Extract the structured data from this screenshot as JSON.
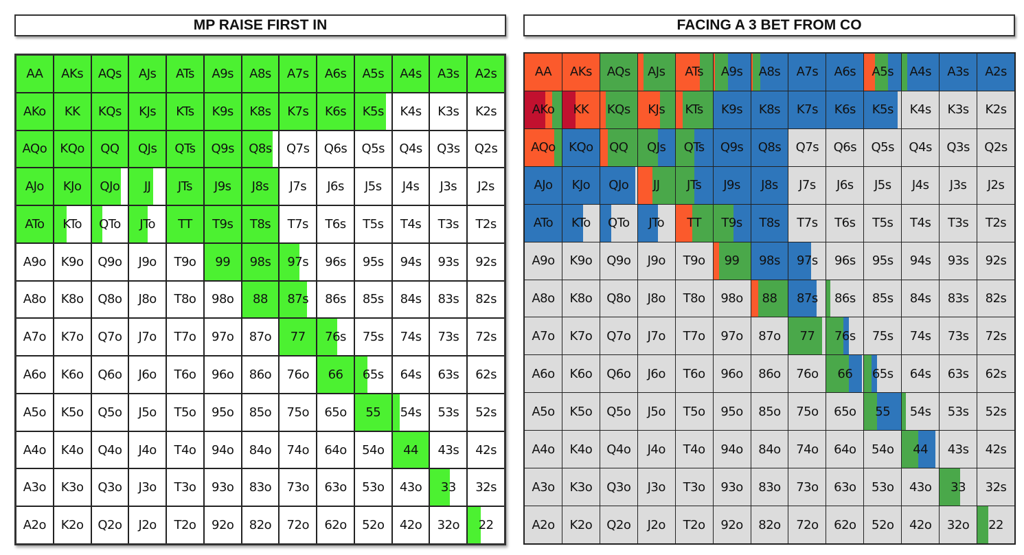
{
  "colors": {
    "raise_green": "#4cf131",
    "fold_white": "#ffffff",
    "fold_gray": "#dcdcdc",
    "call_green": "#4aa84a",
    "blue": "#2e76bb",
    "orange": "#fb5a2c",
    "dark_red": "#c2112f"
  },
  "left_chart": {
    "title": "MP RAISE FIRST IN",
    "background": "#ffffff",
    "actions": [
      {
        "key": "r",
        "color": "#4cf131"
      }
    ]
  },
  "right_chart": {
    "title": "FACING A 3 BET FROM CO",
    "background": "#dcdcdc",
    "actions": [
      {
        "key": "d",
        "color": "#c2112f"
      },
      {
        "key": "o",
        "color": "#fb5a2c"
      },
      {
        "key": "g",
        "color": "#4aa84a"
      },
      {
        "key": "b",
        "color": "#2e76bb"
      }
    ]
  },
  "chart_data": {
    "type": "heatmap",
    "ranks": [
      "A",
      "K",
      "Q",
      "J",
      "T",
      "9",
      "8",
      "7",
      "6",
      "5",
      "4",
      "3",
      "2"
    ],
    "hands": [
      [
        "AA",
        "AKs",
        "AQs",
        "AJs",
        "ATs",
        "A9s",
        "A8s",
        "A7s",
        "A6s",
        "A5s",
        "A4s",
        "A3s",
        "A2s"
      ],
      [
        "AKo",
        "KK",
        "KQs",
        "KJs",
        "KTs",
        "K9s",
        "K8s",
        "K7s",
        "K6s",
        "K5s",
        "K4s",
        "K3s",
        "K2s"
      ],
      [
        "AQo",
        "KQo",
        "QQ",
        "QJs",
        "QTs",
        "Q9s",
        "Q8s",
        "Q7s",
        "Q6s",
        "Q5s",
        "Q4s",
        "Q3s",
        "Q2s"
      ],
      [
        "AJo",
        "KJo",
        "QJo",
        "JJ",
        "JTs",
        "J9s",
        "J8s",
        "J7s",
        "J6s",
        "J5s",
        "J4s",
        "J3s",
        "J2s"
      ],
      [
        "ATo",
        "KTo",
        "QTo",
        "JTo",
        "TT",
        "T9s",
        "T8s",
        "T7s",
        "T6s",
        "T5s",
        "T4s",
        "T3s",
        "T2s"
      ],
      [
        "A9o",
        "K9o",
        "Q9o",
        "J9o",
        "T9o",
        "99",
        "98s",
        "97s",
        "96s",
        "95s",
        "94s",
        "93s",
        "92s"
      ],
      [
        "A8o",
        "K8o",
        "Q8o",
        "J8o",
        "T8o",
        "98o",
        "88",
        "87s",
        "86s",
        "85s",
        "84s",
        "83s",
        "82s"
      ],
      [
        "A7o",
        "K7o",
        "Q7o",
        "J7o",
        "T7o",
        "97o",
        "87o",
        "77",
        "76s",
        "75s",
        "74s",
        "73s",
        "72s"
      ],
      [
        "A6o",
        "K6o",
        "Q6o",
        "J6o",
        "T6o",
        "96o",
        "86o",
        "76o",
        "66",
        "65s",
        "64s",
        "63s",
        "62s"
      ],
      [
        "A5o",
        "K5o",
        "Q5o",
        "J5o",
        "T5o",
        "95o",
        "85o",
        "75o",
        "65o",
        "55",
        "54s",
        "53s",
        "52s"
      ],
      [
        "A4o",
        "K4o",
        "Q4o",
        "J4o",
        "T4o",
        "94o",
        "84o",
        "74o",
        "64o",
        "54o",
        "44",
        "43s",
        "42s"
      ],
      [
        "A3o",
        "K3o",
        "Q3o",
        "J3o",
        "T3o",
        "93o",
        "83o",
        "73o",
        "63o",
        "53o",
        "43o",
        "33",
        "32s"
      ],
      [
        "A2o",
        "K2o",
        "Q2o",
        "J2o",
        "T2o",
        "92o",
        "82o",
        "72o",
        "62o",
        "52o",
        "42o",
        "32o",
        "22"
      ]
    ],
    "left_frequencies": [
      [
        {
          "r": 1
        },
        {
          "r": 1
        },
        {
          "r": 1
        },
        {
          "r": 1
        },
        {
          "r": 1
        },
        {
          "r": 1
        },
        {
          "r": 1
        },
        {
          "r": 1
        },
        {
          "r": 1
        },
        {
          "r": 1
        },
        {
          "r": 1
        },
        {
          "r": 1
        },
        {
          "r": 1
        }
      ],
      [
        {
          "r": 1
        },
        {
          "r": 1
        },
        {
          "r": 1
        },
        {
          "r": 1
        },
        {
          "r": 1
        },
        {
          "r": 1
        },
        {
          "r": 1
        },
        {
          "r": 1
        },
        {
          "r": 1
        },
        {
          "r": 0.85
        },
        {},
        {},
        {}
      ],
      [
        {
          "r": 1
        },
        {
          "r": 1
        },
        {
          "r": 1
        },
        {
          "r": 1
        },
        {
          "r": 1
        },
        {
          "r": 1
        },
        {
          "r": 0.85
        },
        {},
        {},
        {},
        {},
        {},
        {}
      ],
      [
        {
          "r": 1
        },
        {
          "r": 1
        },
        {
          "r": 0.8
        },
        {
          "r": 0.65
        },
        {
          "r": 1
        },
        {
          "r": 1
        },
        {
          "r": 1
        },
        {},
        {},
        {},
        {},
        {},
        {}
      ],
      [
        {
          "r": 1
        },
        {
          "r": 0.35
        },
        {
          "r": 0.3
        },
        {
          "r": 0.5
        },
        {
          "r": 1
        },
        {
          "r": 1
        },
        {
          "r": 1
        },
        {},
        {},
        {},
        {},
        {},
        {}
      ],
      [
        {},
        {},
        {},
        {},
        {},
        {
          "r": 1
        },
        {
          "r": 1
        },
        {
          "r": 0.55
        },
        {},
        {},
        {},
        {},
        {}
      ],
      [
        {},
        {},
        {},
        {},
        {},
        {},
        {
          "r": 1
        },
        {
          "r": 0.75
        },
        {},
        {},
        {},
        {},
        {}
      ],
      [
        {},
        {},
        {},
        {},
        {},
        {},
        {},
        {
          "r": 1
        },
        {
          "r": 0.55
        },
        {},
        {},
        {},
        {}
      ],
      [
        {},
        {},
        {},
        {},
        {},
        {},
        {},
        {},
        {
          "r": 1
        },
        {
          "r": 0.35
        },
        {},
        {},
        {}
      ],
      [
        {},
        {},
        {},
        {},
        {},
        {},
        {},
        {},
        {},
        {
          "r": 1
        },
        {
          "r": 0.2
        },
        {},
        {}
      ],
      [
        {},
        {},
        {},
        {},
        {},
        {},
        {},
        {},
        {},
        {},
        {
          "r": 1
        },
        {},
        {}
      ],
      [
        {},
        {},
        {},
        {},
        {},
        {},
        {},
        {},
        {},
        {},
        {},
        {
          "r": 0.55
        },
        {}
      ],
      [
        {},
        {},
        {},
        {},
        {},
        {},
        {},
        {},
        {},
        {},
        {},
        {},
        {
          "r": 0.35
        }
      ]
    ],
    "right_frequencies": [
      [
        {
          "o": 1
        },
        {
          "o": 1
        },
        {
          "g": 1
        },
        {
          "o": 0.15,
          "g": 0.85
        },
        {
          "o": 0.65,
          "g": 0.35
        },
        {
          "o": 0.05,
          "g": 0.35,
          "b": 0.6
        },
        {
          "o": 0.05,
          "g": 0.2,
          "b": 0.75
        },
        {
          "b": 1
        },
        {
          "b": 1
        },
        {
          "o": 0.3,
          "g": 0.35,
          "b": 0.35
        },
        {
          "g": 0.15,
          "b": 0.85
        },
        {
          "b": 1
        },
        {
          "b": 1
        }
      ],
      [
        {
          "d": 0.55,
          "o": 0.2,
          "g": 0.25
        },
        {
          "d": 0.35,
          "o": 0.65
        },
        {
          "o": 0.15,
          "g": 0.85
        },
        {
          "o": 0.6,
          "g": 0.4
        },
        {
          "o": 0.2,
          "g": 0.8
        },
        {
          "b": 1
        },
        {
          "b": 1
        },
        {
          "b": 1
        },
        {
          "b": 1
        },
        {
          "b": 0.9
        },
        {},
        {},
        {}
      ],
      [
        {
          "o": 0.8,
          "g": 0.2
        },
        {
          "b": 1
        },
        {
          "o": 0.2,
          "g": 0.8
        },
        {
          "g": 0.55,
          "b": 0.45
        },
        {
          "g": 0.5,
          "b": 0.5
        },
        {
          "b": 1
        },
        {
          "b": 1
        },
        {},
        {},
        {},
        {},
        {},
        {}
      ],
      [
        {
          "b": 1
        },
        {
          "b": 1
        },
        {
          "b": 0.95
        },
        {
          "o": 0.4,
          "g": 0.6
        },
        {
          "g": 0.5,
          "b": 0.5
        },
        {
          "b": 1
        },
        {
          "b": 1
        },
        {},
        {},
        {},
        {},
        {},
        {}
      ],
      [
        {
          "b": 1
        },
        {
          "b": 0.55
        },
        {
          "b": 0.3
        },
        {
          "b": 0.55
        },
        {
          "o": 0.45,
          "g": 0.55
        },
        {
          "g": 0.55,
          "b": 0.45
        },
        {
          "b": 1
        },
        {},
        {},
        {},
        {},
        {},
        {}
      ],
      [
        {},
        {},
        {},
        {},
        {},
        {
          "o": 0.15,
          "g": 0.85
        },
        {
          "b": 1
        },
        {
          "b": 0.6
        },
        {},
        {},
        {},
        {},
        {}
      ],
      [
        {},
        {},
        {},
        {},
        {},
        {},
        {
          "o": 0.2,
          "g": 0.8
        },
        {
          "b": 0.75
        },
        {
          "g": 0.1
        },
        {},
        {},
        {},
        {}
      ],
      [
        {},
        {},
        {},
        {},
        {},
        {},
        {},
        {
          "g": 0.9
        },
        {
          "g": 0.45,
          "b": 0.15
        },
        {},
        {},
        {},
        {}
      ],
      [
        {},
        {},
        {},
        {},
        {},
        {},
        {},
        {},
        {
          "g": 0.6,
          "b": 0.35
        },
        {
          "g": 0.2,
          "b": 0.15
        },
        {},
        {},
        {}
      ],
      [
        {},
        {},
        {},
        {},
        {},
        {},
        {},
        {},
        {},
        {
          "g": 0.35,
          "b": 0.65
        },
        {
          "g": 0.1
        },
        {},
        {}
      ],
      [
        {},
        {},
        {},
        {},
        {},
        {},
        {},
        {},
        {},
        {},
        {
          "g": 0.45,
          "b": 0.45
        },
        {},
        {}
      ],
      [
        {},
        {},
        {},
        {},
        {},
        {},
        {},
        {},
        {},
        {},
        {},
        {
          "g": 0.55
        },
        {}
      ],
      [
        {},
        {},
        {},
        {},
        {},
        {},
        {},
        {},
        {},
        {},
        {},
        {},
        {
          "g": 0.3
        }
      ]
    ]
  }
}
